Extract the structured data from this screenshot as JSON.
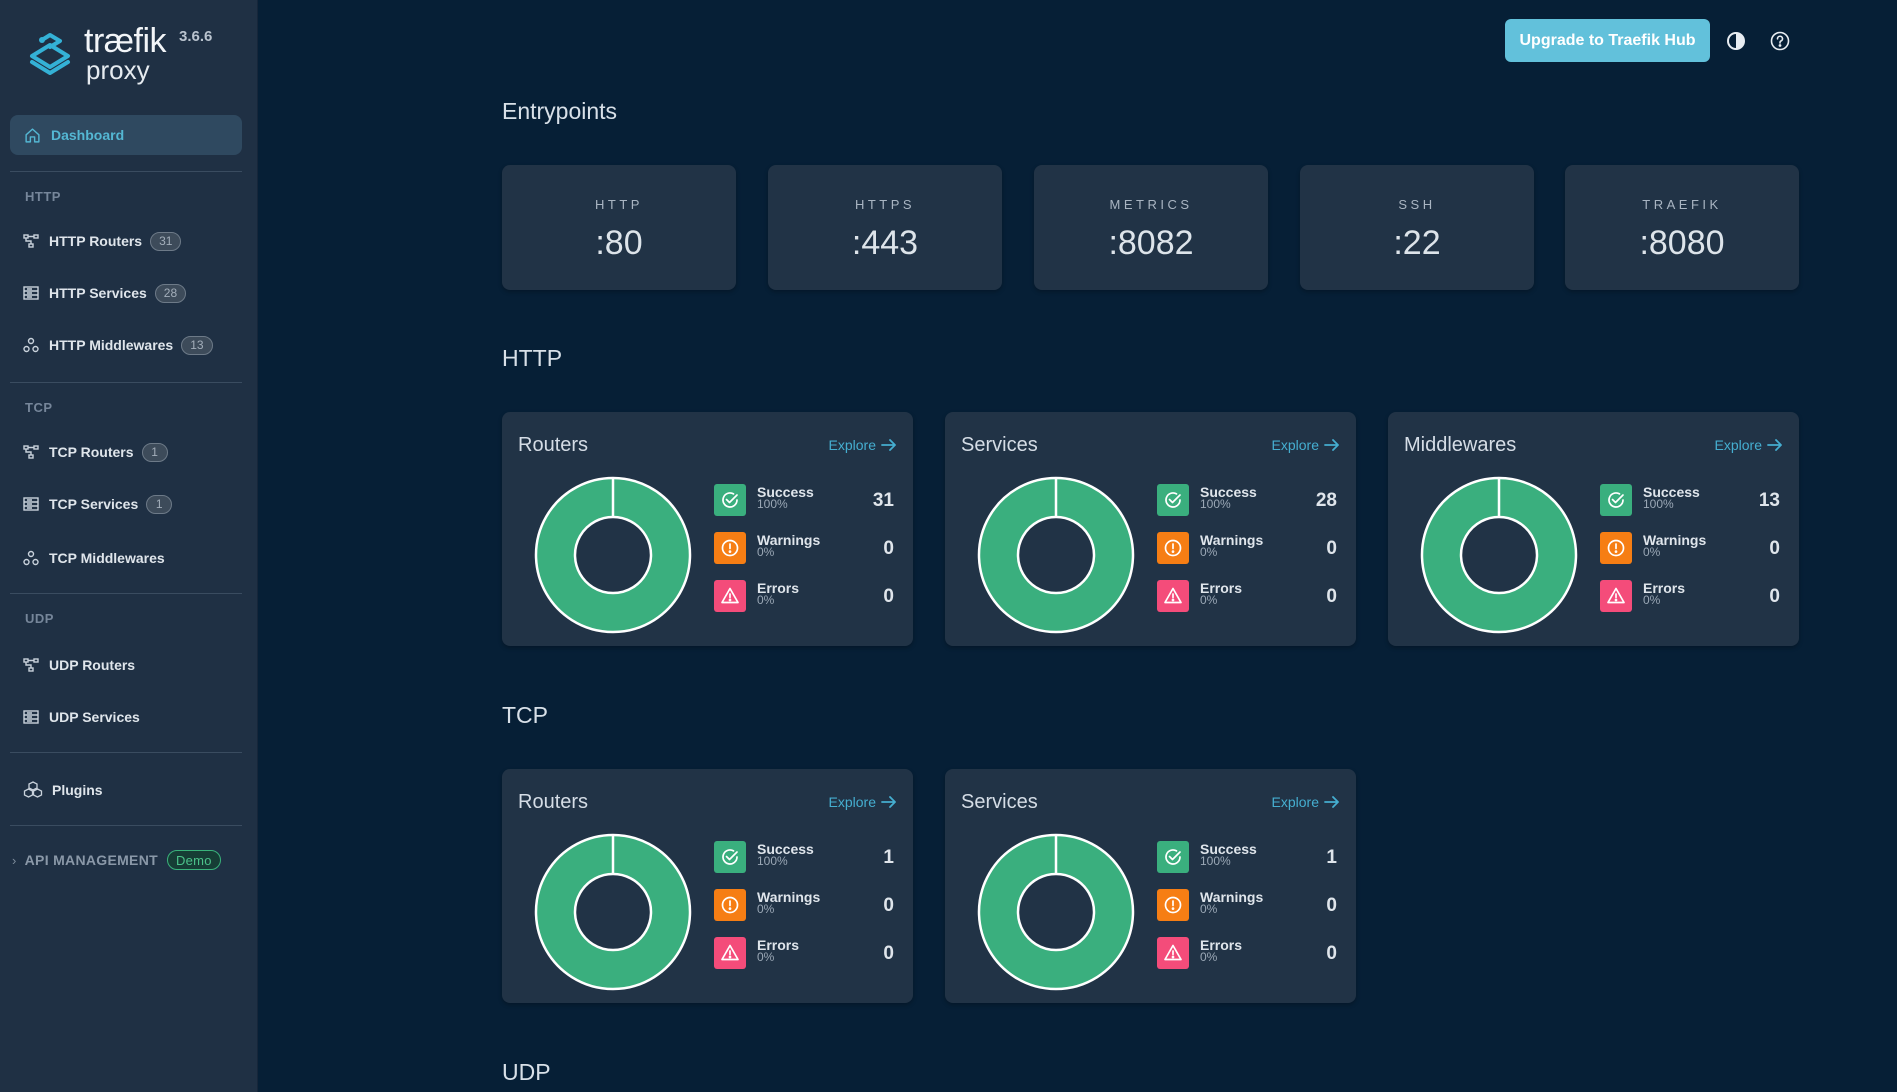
{
  "app": {
    "brand": "træfik",
    "product": "proxy",
    "version": "3.6.6"
  },
  "colors": {
    "accent": "#54b7d3",
    "success": "#3aaf7e",
    "warning": "#f67e14",
    "error": "#f44c7a",
    "upgrade_button": "#62c1db"
  },
  "sidebar": {
    "dashboard": {
      "label": "Dashboard",
      "icon": "home-icon"
    },
    "sections": [
      {
        "label": "HTTP",
        "items": [
          {
            "label": "HTTP Routers",
            "badge": "31",
            "icon": "routers-icon"
          },
          {
            "label": "HTTP Services",
            "badge": "28",
            "icon": "services-icon"
          },
          {
            "label": "HTTP Middlewares",
            "badge": "13",
            "icon": "middlewares-icon"
          }
        ]
      },
      {
        "label": "TCP",
        "items": [
          {
            "label": "TCP Routers",
            "badge": "1",
            "icon": "routers-icon"
          },
          {
            "label": "TCP Services",
            "badge": "1",
            "icon": "services-icon"
          },
          {
            "label": "TCP Middlewares",
            "badge": null,
            "icon": "middlewares-icon"
          }
        ]
      },
      {
        "label": "UDP",
        "items": [
          {
            "label": "UDP Routers",
            "badge": null,
            "icon": "routers-icon"
          },
          {
            "label": "UDP Services",
            "badge": null,
            "icon": "services-icon"
          }
        ]
      }
    ],
    "plugins": {
      "label": "Plugins",
      "icon": "plugins-icon"
    },
    "api_management": {
      "label": "API MANAGEMENT",
      "badge": "Demo"
    }
  },
  "topbar": {
    "upgrade_label": "Upgrade to Traefik Hub",
    "theme_icon": "contrast-icon",
    "help_icon": "help-icon"
  },
  "main": {
    "entrypoints_title": "Entrypoints",
    "entrypoints": [
      {
        "name": "HTTP",
        "port": ":80"
      },
      {
        "name": "HTTPS",
        "port": ":443"
      },
      {
        "name": "METRICS",
        "port": ":8082"
      },
      {
        "name": "SSH",
        "port": ":22"
      },
      {
        "name": "TRAEFIK",
        "port": ":8080"
      }
    ],
    "explore_label": "Explore",
    "legend_labels": {
      "success": "Success",
      "warnings": "Warnings",
      "errors": "Errors"
    },
    "sections": [
      {
        "title": "HTTP",
        "cards": [
          {
            "title": "Routers",
            "success": 31,
            "success_pct": "100%",
            "warnings": 0,
            "warnings_pct": "0%",
            "errors": 0,
            "errors_pct": "0%"
          },
          {
            "title": "Services",
            "success": 28,
            "success_pct": "100%",
            "warnings": 0,
            "warnings_pct": "0%",
            "errors": 0,
            "errors_pct": "0%"
          },
          {
            "title": "Middlewares",
            "success": 13,
            "success_pct": "100%",
            "warnings": 0,
            "warnings_pct": "0%",
            "errors": 0,
            "errors_pct": "0%"
          }
        ]
      },
      {
        "title": "TCP",
        "cards": [
          {
            "title": "Routers",
            "success": 1,
            "success_pct": "100%",
            "warnings": 0,
            "warnings_pct": "0%",
            "errors": 0,
            "errors_pct": "0%"
          },
          {
            "title": "Services",
            "success": 1,
            "success_pct": "100%",
            "warnings": 0,
            "warnings_pct": "0%",
            "errors": 0,
            "errors_pct": "0%"
          }
        ]
      },
      {
        "title": "UDP",
        "cards": []
      }
    ]
  }
}
